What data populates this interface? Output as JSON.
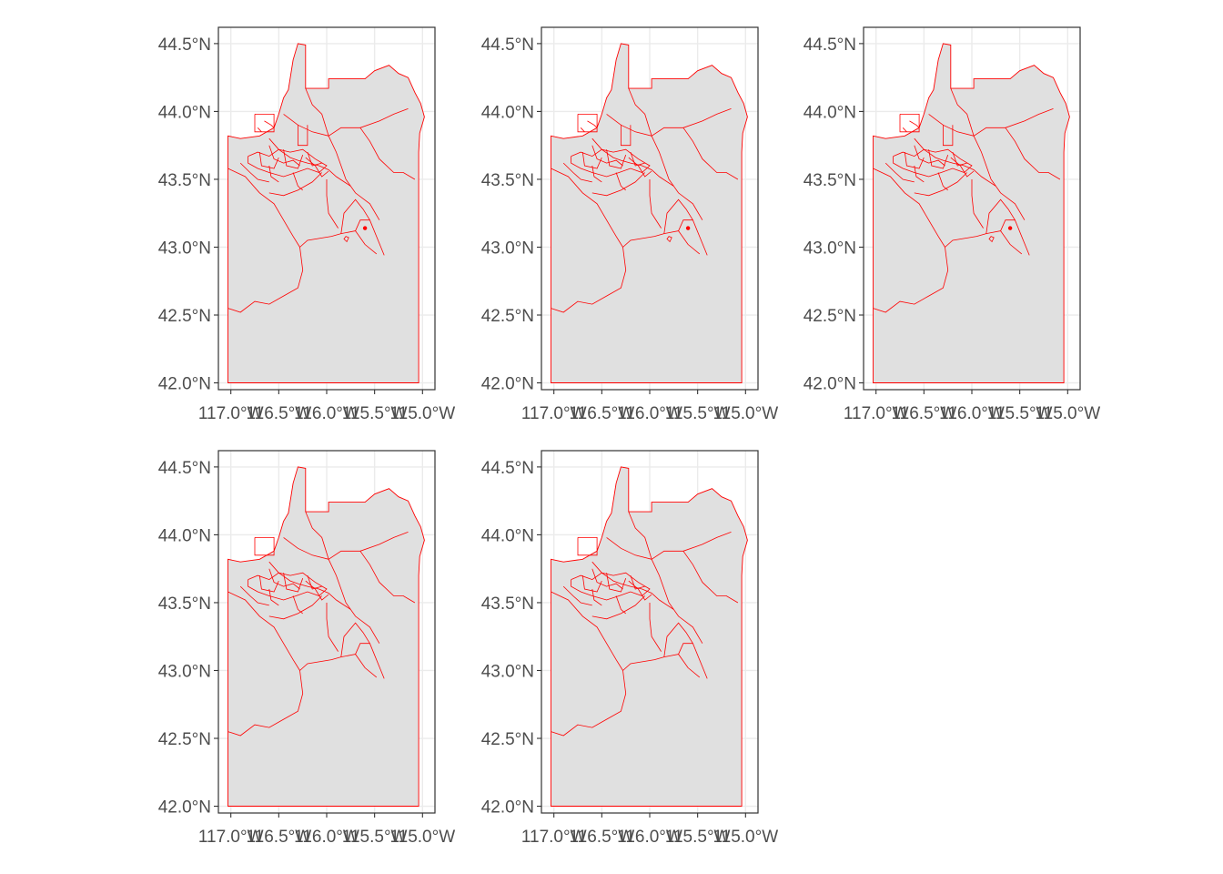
{
  "figure": {
    "lat_ticks": [
      "44.5°N",
      "44.0°N",
      "43.5°N",
      "43.0°N",
      "42.5°N",
      "42.0°N"
    ],
    "lon_ticks": [
      "117.0°W",
      "116.5°W",
      "116.0°W",
      "115.5°W",
      "115.0°W"
    ],
    "lat_values": [
      44.5,
      44.0,
      43.5,
      43.0,
      42.5,
      42.0
    ],
    "lon_values": [
      -117.0,
      -116.5,
      -116.0,
      -115.5,
      -115.0
    ],
    "xlim": [
      -117.13,
      -114.87
    ],
    "ylim": [
      41.95,
      44.62
    ],
    "colors": {
      "fill": "#e0e0e0",
      "stroke": "#ff0000",
      "grid": "#ebebeb",
      "frame": "#333333",
      "tick_text": "#4d4d4d"
    },
    "panel_count": 5,
    "layout": "3-2 grid"
  }
}
